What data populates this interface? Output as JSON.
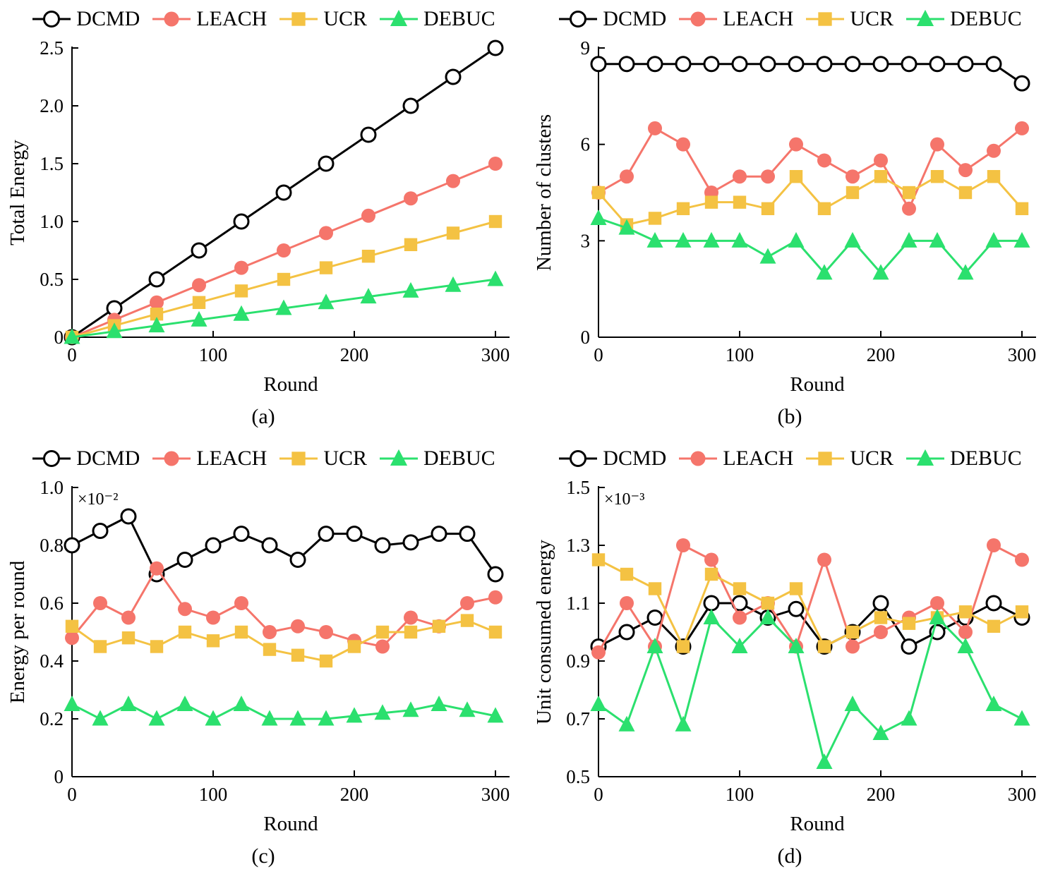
{
  "legend": {
    "items": [
      {
        "label": "DCMD",
        "marker": "circle-open",
        "color": "#000000"
      },
      {
        "label": "LEACH",
        "marker": "circle",
        "color": "#F5756B"
      },
      {
        "label": "UCR",
        "marker": "square",
        "color": "#F4C243"
      },
      {
        "label": "DEBUC",
        "marker": "triangle",
        "color": "#2BE06E"
      }
    ]
  },
  "chart_data": [
    {
      "type": "line",
      "sublabel": "(a)",
      "xlabel": "Round",
      "ylabel": "Total Energy",
      "multiplier": "",
      "xlim": [
        0,
        310
      ],
      "ylim": [
        0,
        2.5
      ],
      "xticks": [
        0,
        100,
        200,
        300
      ],
      "xtick_labels": [
        "0",
        "100",
        "200",
        "300"
      ],
      "yticks": [
        0,
        0.5,
        1.0,
        1.5,
        2.0,
        2.5
      ],
      "ytick_labels": [
        "0",
        "0.5",
        "1.0",
        "1.5",
        "2.0",
        "2.5"
      ],
      "x": [
        0,
        30,
        60,
        90,
        120,
        150,
        180,
        210,
        240,
        270,
        300
      ],
      "series": [
        {
          "name": "DCMD",
          "marker": "circle-open",
          "color": "#000000",
          "values": [
            0,
            0.25,
            0.5,
            0.75,
            1.0,
            1.25,
            1.5,
            1.75,
            2.0,
            2.25,
            2.5
          ]
        },
        {
          "name": "LEACH",
          "marker": "circle",
          "color": "#F5756B",
          "values": [
            0,
            0.15,
            0.3,
            0.45,
            0.6,
            0.75,
            0.9,
            1.05,
            1.2,
            1.35,
            1.5
          ]
        },
        {
          "name": "UCR",
          "marker": "square",
          "color": "#F4C243",
          "values": [
            0,
            0.1,
            0.2,
            0.3,
            0.4,
            0.5,
            0.6,
            0.7,
            0.8,
            0.9,
            1.0
          ]
        },
        {
          "name": "DEBUC",
          "marker": "triangle",
          "color": "#2BE06E",
          "values": [
            0,
            0.05,
            0.1,
            0.15,
            0.2,
            0.25,
            0.3,
            0.35,
            0.4,
            0.45,
            0.5
          ]
        }
      ]
    },
    {
      "type": "line",
      "sublabel": "(b)",
      "xlabel": "Round",
      "ylabel": "Number of clusters",
      "multiplier": "",
      "xlim": [
        0,
        310
      ],
      "ylim": [
        0,
        9
      ],
      "xticks": [
        0,
        100,
        200,
        300
      ],
      "xtick_labels": [
        "0",
        "100",
        "200",
        "300"
      ],
      "yticks": [
        0,
        3,
        6,
        9
      ],
      "ytick_labels": [
        "0",
        "3",
        "6",
        "9"
      ],
      "x": [
        0,
        20,
        40,
        60,
        80,
        100,
        120,
        140,
        160,
        180,
        200,
        220,
        240,
        260,
        280,
        300
      ],
      "series": [
        {
          "name": "DCMD",
          "marker": "circle-open",
          "color": "#000000",
          "values": [
            8.5,
            8.5,
            8.5,
            8.5,
            8.5,
            8.5,
            8.5,
            8.5,
            8.5,
            8.5,
            8.5,
            8.5,
            8.5,
            8.5,
            8.5,
            7.9
          ]
        },
        {
          "name": "LEACH",
          "marker": "circle",
          "color": "#F5756B",
          "values": [
            4.5,
            5.0,
            6.5,
            6.0,
            4.5,
            5.0,
            5.0,
            6.0,
            5.5,
            5.0,
            5.5,
            4.0,
            6.0,
            5.2,
            5.8,
            6.5
          ]
        },
        {
          "name": "UCR",
          "marker": "square",
          "color": "#F4C243",
          "values": [
            4.5,
            3.5,
            3.7,
            4.0,
            4.2,
            4.2,
            4.0,
            5.0,
            4.0,
            4.5,
            5.0,
            4.5,
            5.0,
            4.5,
            5.0,
            4.0
          ]
        },
        {
          "name": "DEBUC",
          "marker": "triangle",
          "color": "#2BE06E",
          "values": [
            3.7,
            3.4,
            3.0,
            3.0,
            3.0,
            3.0,
            2.5,
            3.0,
            2.0,
            3.0,
            2.0,
            3.0,
            3.0,
            2.0,
            3.0,
            3.0
          ]
        }
      ]
    },
    {
      "type": "line",
      "sublabel": "(c)",
      "xlabel": "Round",
      "ylabel": "Energy per round",
      "multiplier": "×10⁻²",
      "xlim": [
        0,
        310
      ],
      "ylim": [
        0,
        1.0
      ],
      "xticks": [
        0,
        100,
        200,
        300
      ],
      "xtick_labels": [
        "0",
        "100",
        "200",
        "300"
      ],
      "yticks": [
        0,
        0.2,
        0.4,
        0.6,
        0.8,
        1.0
      ],
      "ytick_labels": [
        "0",
        "0.2",
        "0.4",
        "0.6",
        "0.8",
        "1.0"
      ],
      "x": [
        0,
        20,
        40,
        60,
        80,
        100,
        120,
        140,
        160,
        180,
        200,
        220,
        240,
        260,
        280,
        300
      ],
      "series": [
        {
          "name": "DCMD",
          "marker": "circle-open",
          "color": "#000000",
          "values": [
            0.8,
            0.85,
            0.9,
            0.7,
            0.75,
            0.8,
            0.84,
            0.8,
            0.75,
            0.84,
            0.84,
            0.8,
            0.81,
            0.84,
            0.84,
            0.7
          ]
        },
        {
          "name": "LEACH",
          "marker": "circle",
          "color": "#F5756B",
          "values": [
            0.48,
            0.6,
            0.55,
            0.72,
            0.58,
            0.55,
            0.6,
            0.5,
            0.52,
            0.5,
            0.47,
            0.45,
            0.55,
            0.52,
            0.6,
            0.62
          ]
        },
        {
          "name": "UCR",
          "marker": "square",
          "color": "#F4C243",
          "values": [
            0.52,
            0.45,
            0.48,
            0.45,
            0.5,
            0.47,
            0.5,
            0.44,
            0.42,
            0.4,
            0.45,
            0.5,
            0.5,
            0.52,
            0.54,
            0.5
          ]
        },
        {
          "name": "DEBUC",
          "marker": "triangle",
          "color": "#2BE06E",
          "values": [
            0.25,
            0.2,
            0.25,
            0.2,
            0.25,
            0.2,
            0.25,
            0.2,
            0.2,
            0.2,
            0.21,
            0.22,
            0.23,
            0.25,
            0.23,
            0.21
          ]
        }
      ]
    },
    {
      "type": "line",
      "sublabel": "(d)",
      "xlabel": "Round",
      "ylabel": "Unit consumed energy",
      "multiplier": "×10⁻³",
      "xlim": [
        0,
        310
      ],
      "ylim": [
        0.5,
        1.5
      ],
      "xticks": [
        0,
        100,
        200,
        300
      ],
      "xtick_labels": [
        "0",
        "100",
        "200",
        "300"
      ],
      "yticks": [
        0.5,
        0.7,
        0.9,
        1.1,
        1.3,
        1.5
      ],
      "ytick_labels": [
        "0.5",
        "0.7",
        "0.9",
        "1.1",
        "1.3",
        "1.5"
      ],
      "x": [
        0,
        20,
        40,
        60,
        80,
        100,
        120,
        140,
        160,
        180,
        200,
        220,
        240,
        260,
        280,
        300
      ],
      "series": [
        {
          "name": "DCMD",
          "marker": "circle-open",
          "color": "#000000",
          "values": [
            0.95,
            1.0,
            1.05,
            0.95,
            1.1,
            1.1,
            1.05,
            1.08,
            0.95,
            1.0,
            1.1,
            0.95,
            1.0,
            1.05,
            1.1,
            1.05
          ]
        },
        {
          "name": "LEACH",
          "marker": "circle",
          "color": "#F5756B",
          "values": [
            0.93,
            1.1,
            0.95,
            1.3,
            1.25,
            1.05,
            1.1,
            0.95,
            1.25,
            0.95,
            1.0,
            1.05,
            1.1,
            1.0,
            1.3,
            1.25
          ]
        },
        {
          "name": "UCR",
          "marker": "square",
          "color": "#F4C243",
          "values": [
            1.25,
            1.2,
            1.15,
            0.95,
            1.2,
            1.15,
            1.1,
            1.15,
            0.95,
            1.0,
            1.05,
            1.03,
            1.05,
            1.07,
            1.02,
            1.07
          ]
        },
        {
          "name": "DEBUC",
          "marker": "triangle",
          "color": "#2BE06E",
          "values": [
            0.75,
            0.68,
            0.95,
            0.68,
            1.05,
            0.95,
            1.05,
            0.95,
            0.55,
            0.75,
            0.65,
            0.7,
            1.05,
            0.95,
            0.75,
            0.7
          ]
        }
      ]
    }
  ]
}
